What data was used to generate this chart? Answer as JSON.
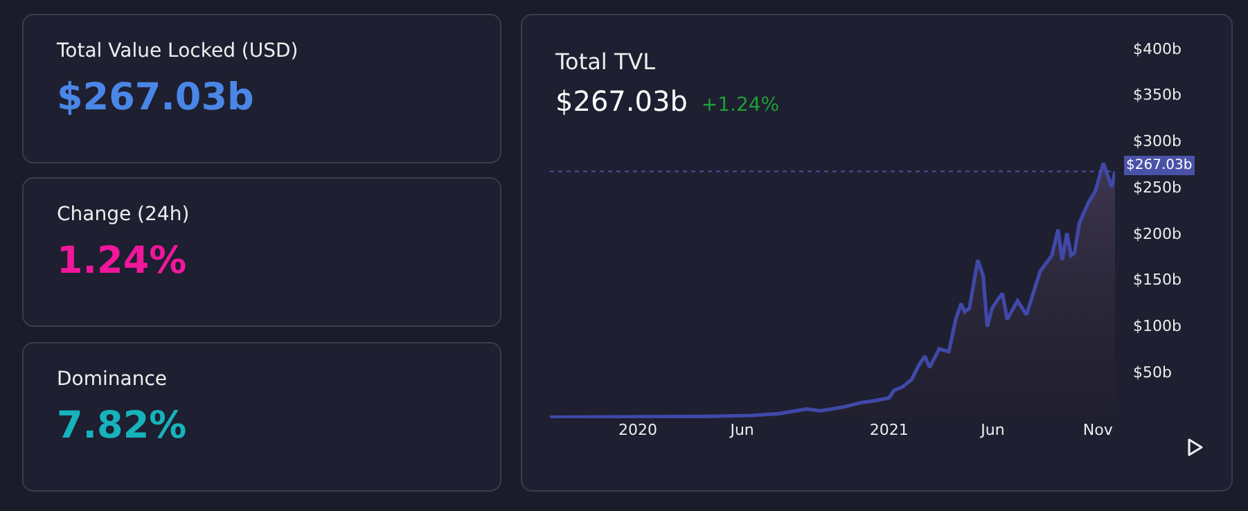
{
  "chart_data": [
    {
      "type": "other",
      "title": "Total Value Locked (USD)",
      "subtitle": "$267.03b",
      "color": "#4a86e8"
    },
    {
      "type": "other",
      "title": "Change (24h)",
      "subtitle": "1.24%",
      "color": "#f0179b"
    },
    {
      "type": "other",
      "title": "Dominance",
      "subtitle": "7.82%",
      "color": "#16b3bd"
    },
    {
      "type": "area",
      "title": "Total TVL",
      "subtitle": "$267.03b",
      "annotations": [
        "+1.24%"
      ],
      "x": [
        "2019-08-26",
        "2020-04-09",
        "2020-06-15",
        "2020-07-25",
        "2020-09-03",
        "2020-09-23",
        "2020-10-26",
        "2020-11-22",
        "2020-12-12",
        "2021-01-01",
        "2021-01-08",
        "2021-01-21",
        "2021-02-03",
        "2021-02-13",
        "2021-02-22",
        "2021-03-01",
        "2021-03-15",
        "2021-03-29",
        "2021-04-08",
        "2021-04-16",
        "2021-04-21",
        "2021-04-28",
        "2021-05-10",
        "2021-05-18",
        "2021-05-24",
        "2021-05-31",
        "2021-06-07",
        "2021-06-15",
        "2021-06-22",
        "2021-07-07",
        "2021-07-20",
        "2021-08-09",
        "2021-08-26",
        "2021-09-04",
        "2021-09-10",
        "2021-09-17",
        "2021-09-23",
        "2021-09-28",
        "2021-10-05",
        "2021-10-18",
        "2021-10-28",
        "2021-11-09",
        "2021-11-21",
        "2021-11-26"
      ],
      "series": [
        {
          "color": "#4049a8",
          "values": [
            1,
            2,
            3,
            5,
            10,
            8,
            12,
            17,
            19,
            22,
            30,
            34,
            42,
            57,
            67,
            55,
            75,
            72,
            107,
            124,
            115,
            119,
            171,
            154,
            99,
            119,
            127,
            135,
            107,
            127,
            112,
            159,
            176,
            204,
            171,
            200,
            176,
            179,
            211,
            233,
            245,
            276,
            250,
            267.03
          ]
        }
      ],
      "xlim": [
        "2019-08-26",
        "2021-11-26"
      ],
      "xticks": [
        {
          "value": "2020-01-01",
          "label": "2020"
        },
        {
          "value": "2020-06-01",
          "label": "Jun"
        },
        {
          "value": "2021-01-01",
          "label": "2021"
        },
        {
          "value": "2021-06-01",
          "label": "Jun"
        },
        {
          "value": "2021-11-01",
          "label": "Nov"
        }
      ],
      "ylim": [
        0,
        400
      ],
      "yticks": [
        {
          "value": 50,
          "label": "$50b"
        },
        {
          "value": 100,
          "label": "$100b"
        },
        {
          "value": 150,
          "label": "$150b"
        },
        {
          "value": 200,
          "label": "$200b"
        },
        {
          "value": 250,
          "label": "$250b"
        },
        {
          "value": 300,
          "label": "$300b"
        },
        {
          "value": 350,
          "label": "$350b"
        },
        {
          "value": 400,
          "label": "$400b"
        }
      ],
      "ref_lines": [
        {
          "axis": "y",
          "value": 267.03,
          "label": "$267.03b",
          "color": "#4a52a8",
          "line_style": "dotted"
        }
      ],
      "marker": "none",
      "line_style": "solid"
    }
  ]
}
